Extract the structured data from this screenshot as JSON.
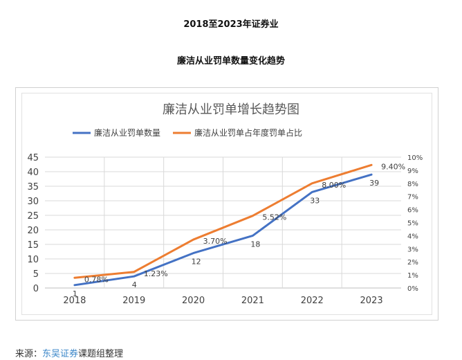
{
  "page": {
    "heading_line1": "2018至2023年证券业",
    "heading_line2": "廉洁从业罚单数量变化趋势",
    "source_prefix": "来源：",
    "source_highlight": "东吴证券",
    "source_suffix": "课题组整理"
  },
  "colors": {
    "series1": "#4472c4",
    "series2": "#ed7d31",
    "grid": "#d9d9d9",
    "axis_text": "#404040"
  },
  "chart_data": {
    "type": "line",
    "title": "廉洁从业罚单增长趋势图",
    "categories": [
      "2018",
      "2019",
      "2020",
      "2021",
      "2022",
      "2023"
    ],
    "legend_position": "top",
    "grid": true,
    "y_left": {
      "min": 0,
      "max": 45,
      "step": 5,
      "ticks": [
        "0",
        "5",
        "10",
        "15",
        "20",
        "25",
        "30",
        "35",
        "40",
        "45"
      ]
    },
    "y_right": {
      "min": 0,
      "max": 10,
      "step": 1,
      "ticks": [
        "0%",
        "1%",
        "2%",
        "3%",
        "4%",
        "5%",
        "6%",
        "7%",
        "8%",
        "9%",
        "10%"
      ]
    },
    "series": [
      {
        "name": "廉洁从业罚单数量",
        "axis": "left",
        "values": [
          1,
          4,
          12,
          18,
          33,
          39
        ],
        "labels": [
          "1",
          "4",
          "12",
          "18",
          "33",
          "39"
        ]
      },
      {
        "name": "廉洁从业罚单占年度罚单占比",
        "axis": "right",
        "values": [
          0.78,
          1.23,
          3.7,
          5.52,
          8.0,
          9.4
        ],
        "labels": [
          "0.78%",
          "1.23%",
          "3.70%",
          "5.52%",
          "8.00%",
          "9.40%"
        ]
      }
    ]
  }
}
